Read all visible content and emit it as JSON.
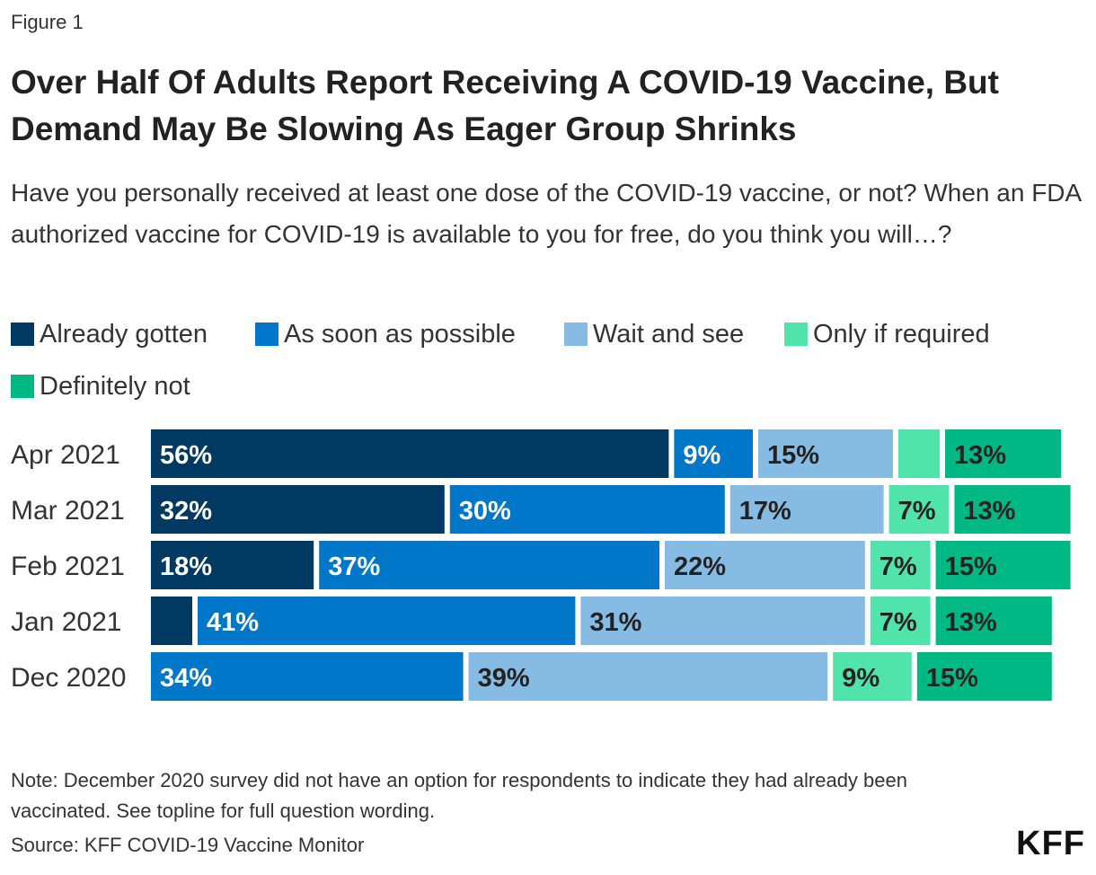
{
  "figure_label": "Figure 1",
  "title": "Over Half Of Adults Report Receiving A COVID-19 Vaccine, But Demand May Be Slowing As Eager Group Shrinks",
  "subtitle": "Have you personally received at least one dose of the COVID-19 vaccine, or not? When an FDA authorized vaccine for COVID-19 is available to you for free, do you think you will…?",
  "note": "Note: December 2020 survey did not have an option for respondents to indicate they had already been vaccinated. See topline for full question wording.",
  "source": "Source: KFF COVID-19 Vaccine Monitor",
  "logo": "KFF",
  "chart_data": {
    "type": "bar",
    "orientation": "horizontal",
    "stacked": true,
    "categories": [
      "Apr 2021",
      "Mar 2021",
      "Feb 2021",
      "Jan 2021",
      "Dec 2020"
    ],
    "series": [
      {
        "name": "Already gotten",
        "color": "#003a63",
        "label_color": "#ffffff",
        "values": [
          56,
          32,
          18,
          5,
          0
        ],
        "labels": [
          "56%",
          "32%",
          "18%",
          "",
          ""
        ]
      },
      {
        "name": "As soon as possible",
        "color": "#0077c8",
        "label_color": "#ffffff",
        "values": [
          9,
          30,
          37,
          41,
          34
        ],
        "labels": [
          "9%",
          "30%",
          "37%",
          "41%",
          "34%"
        ]
      },
      {
        "name": "Wait and see",
        "color": "#86bbe3",
        "label_color": "#222222",
        "values": [
          15,
          17,
          22,
          31,
          39
        ],
        "labels": [
          "15%",
          "17%",
          "22%",
          "31%",
          "39%"
        ]
      },
      {
        "name": "Only if required",
        "color": "#50e3ab",
        "label_color": "#222222",
        "values": [
          5,
          7,
          7,
          7,
          9
        ],
        "labels": [
          "",
          "7%",
          "7%",
          "7%",
          "9%"
        ]
      },
      {
        "name": "Definitely not",
        "color": "#00b884",
        "label_color": "#222222",
        "values": [
          13,
          13,
          15,
          13,
          15
        ],
        "labels": [
          "13%",
          "13%",
          "15%",
          "13%",
          "15%"
        ]
      }
    ],
    "legend_position": "top",
    "grid": false
  }
}
